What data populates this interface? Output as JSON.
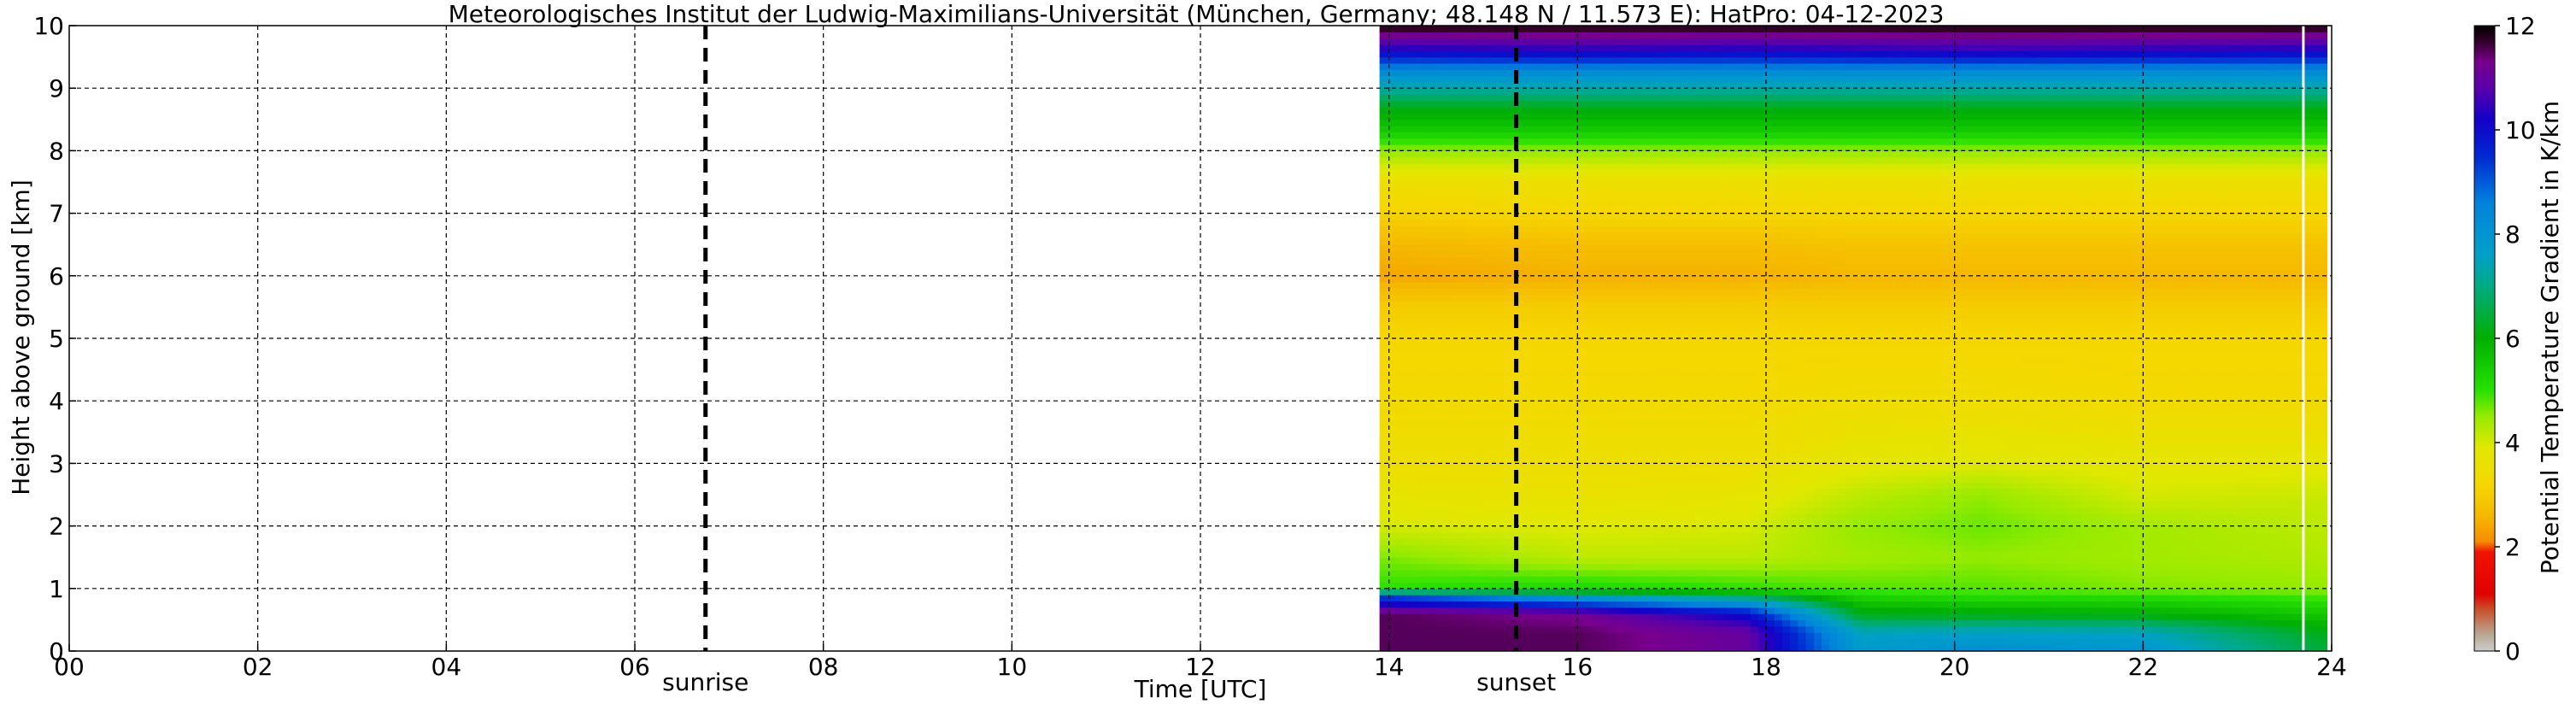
{
  "chart_data": {
    "type": "heatmap",
    "title": "Meteorologisches Institut der Ludwig-Maximilians-Universität (München, Germany; 48.148 N / 11.573 E):    HatPro: 04-12-2023",
    "xlabel": "Time [UTC]",
    "ylabel": "Height above ground [km]",
    "xlim": [
      0,
      24
    ],
    "ylim": [
      0,
      10
    ],
    "x_ticks": [
      "00",
      "02",
      "04",
      "06",
      "08",
      "10",
      "12",
      "14",
      "16",
      "18",
      "20",
      "22",
      "24"
    ],
    "y_ticks": [
      "0",
      "1",
      "2",
      "3",
      "4",
      "5",
      "6",
      "7",
      "8",
      "9",
      "10"
    ],
    "grid": true,
    "data_start_hour": 13.9,
    "data_end_hour": 23.95,
    "white_line_hour": 23.7,
    "events": [
      {
        "label": "sunrise",
        "hour": 6.75
      },
      {
        "label": "sunset",
        "hour": 15.35
      }
    ],
    "colorbar": {
      "label": "Potential Temperature Gradient in K/km",
      "min": 0,
      "max": 12,
      "ticks": [
        "0",
        "2",
        "4",
        "6",
        "8",
        "10",
        "12"
      ]
    },
    "profile_heights_km": [
      0,
      0.3,
      0.6,
      0.9,
      1.0,
      1.5,
      2.0,
      2.5,
      3.0,
      4.0,
      5.0,
      5.5,
      6.0,
      6.5,
      7.0,
      7.5,
      8.0,
      8.3,
      8.7,
      9.0,
      9.3,
      9.6,
      10.0
    ],
    "profile_values": [
      {
        "hour": 14.0,
        "values": [
          11.5,
          11.5,
          11.5,
          9.0,
          5.0,
          4.6,
          4.0,
          3.7,
          3.5,
          3.3,
          3.2,
          3.0,
          2.4,
          2.6,
          3.1,
          3.5,
          4.5,
          5.4,
          6.2,
          7.3,
          8.4,
          10.2,
          11.9
        ]
      },
      {
        "hour": 16.0,
        "values": [
          11.5,
          11.5,
          11.2,
          7.5,
          5.2,
          4.2,
          3.9,
          3.6,
          3.5,
          3.3,
          3.2,
          3.0,
          2.5,
          2.7,
          3.2,
          3.5,
          4.5,
          5.4,
          6.2,
          7.3,
          8.4,
          10.3,
          11.9
        ]
      },
      {
        "hour": 17.8,
        "values": [
          11.0,
          11.0,
          10.0,
          6.5,
          5.0,
          4.2,
          4.0,
          3.7,
          3.5,
          3.3,
          3.2,
          3.0,
          2.5,
          2.7,
          3.2,
          3.5,
          4.5,
          5.4,
          6.2,
          7.3,
          8.4,
          10.2,
          11.9
        ]
      },
      {
        "hour": 19.0,
        "values": [
          7.8,
          7.5,
          6.2,
          5.2,
          4.8,
          4.4,
          4.5,
          4.2,
          3.8,
          3.4,
          3.2,
          3.0,
          2.6,
          2.8,
          3.2,
          3.5,
          4.5,
          5.4,
          6.2,
          7.3,
          8.4,
          10.3,
          11.9
        ]
      },
      {
        "hour": 20.3,
        "values": [
          8.2,
          7.6,
          6.1,
          5.0,
          4.8,
          4.5,
          4.7,
          4.5,
          3.9,
          3.4,
          3.2,
          3.0,
          2.6,
          2.8,
          3.2,
          3.5,
          4.5,
          5.4,
          6.2,
          7.3,
          8.4,
          10.4,
          11.9
        ]
      },
      {
        "hour": 22.0,
        "values": [
          8.0,
          7.5,
          6.0,
          5.0,
          4.6,
          4.4,
          4.4,
          4.0,
          3.8,
          3.3,
          3.2,
          3.0,
          2.6,
          2.8,
          3.2,
          3.5,
          4.5,
          5.4,
          6.2,
          7.3,
          8.4,
          10.3,
          11.9
        ]
      },
      {
        "hour": 23.9,
        "values": [
          6.5,
          6.2,
          5.5,
          4.8,
          4.5,
          4.3,
          4.2,
          4.1,
          3.8,
          3.3,
          3.2,
          3.0,
          2.6,
          2.8,
          3.2,
          3.5,
          4.5,
          5.4,
          6.2,
          7.3,
          8.4,
          10.2,
          11.9
        ]
      }
    ]
  }
}
